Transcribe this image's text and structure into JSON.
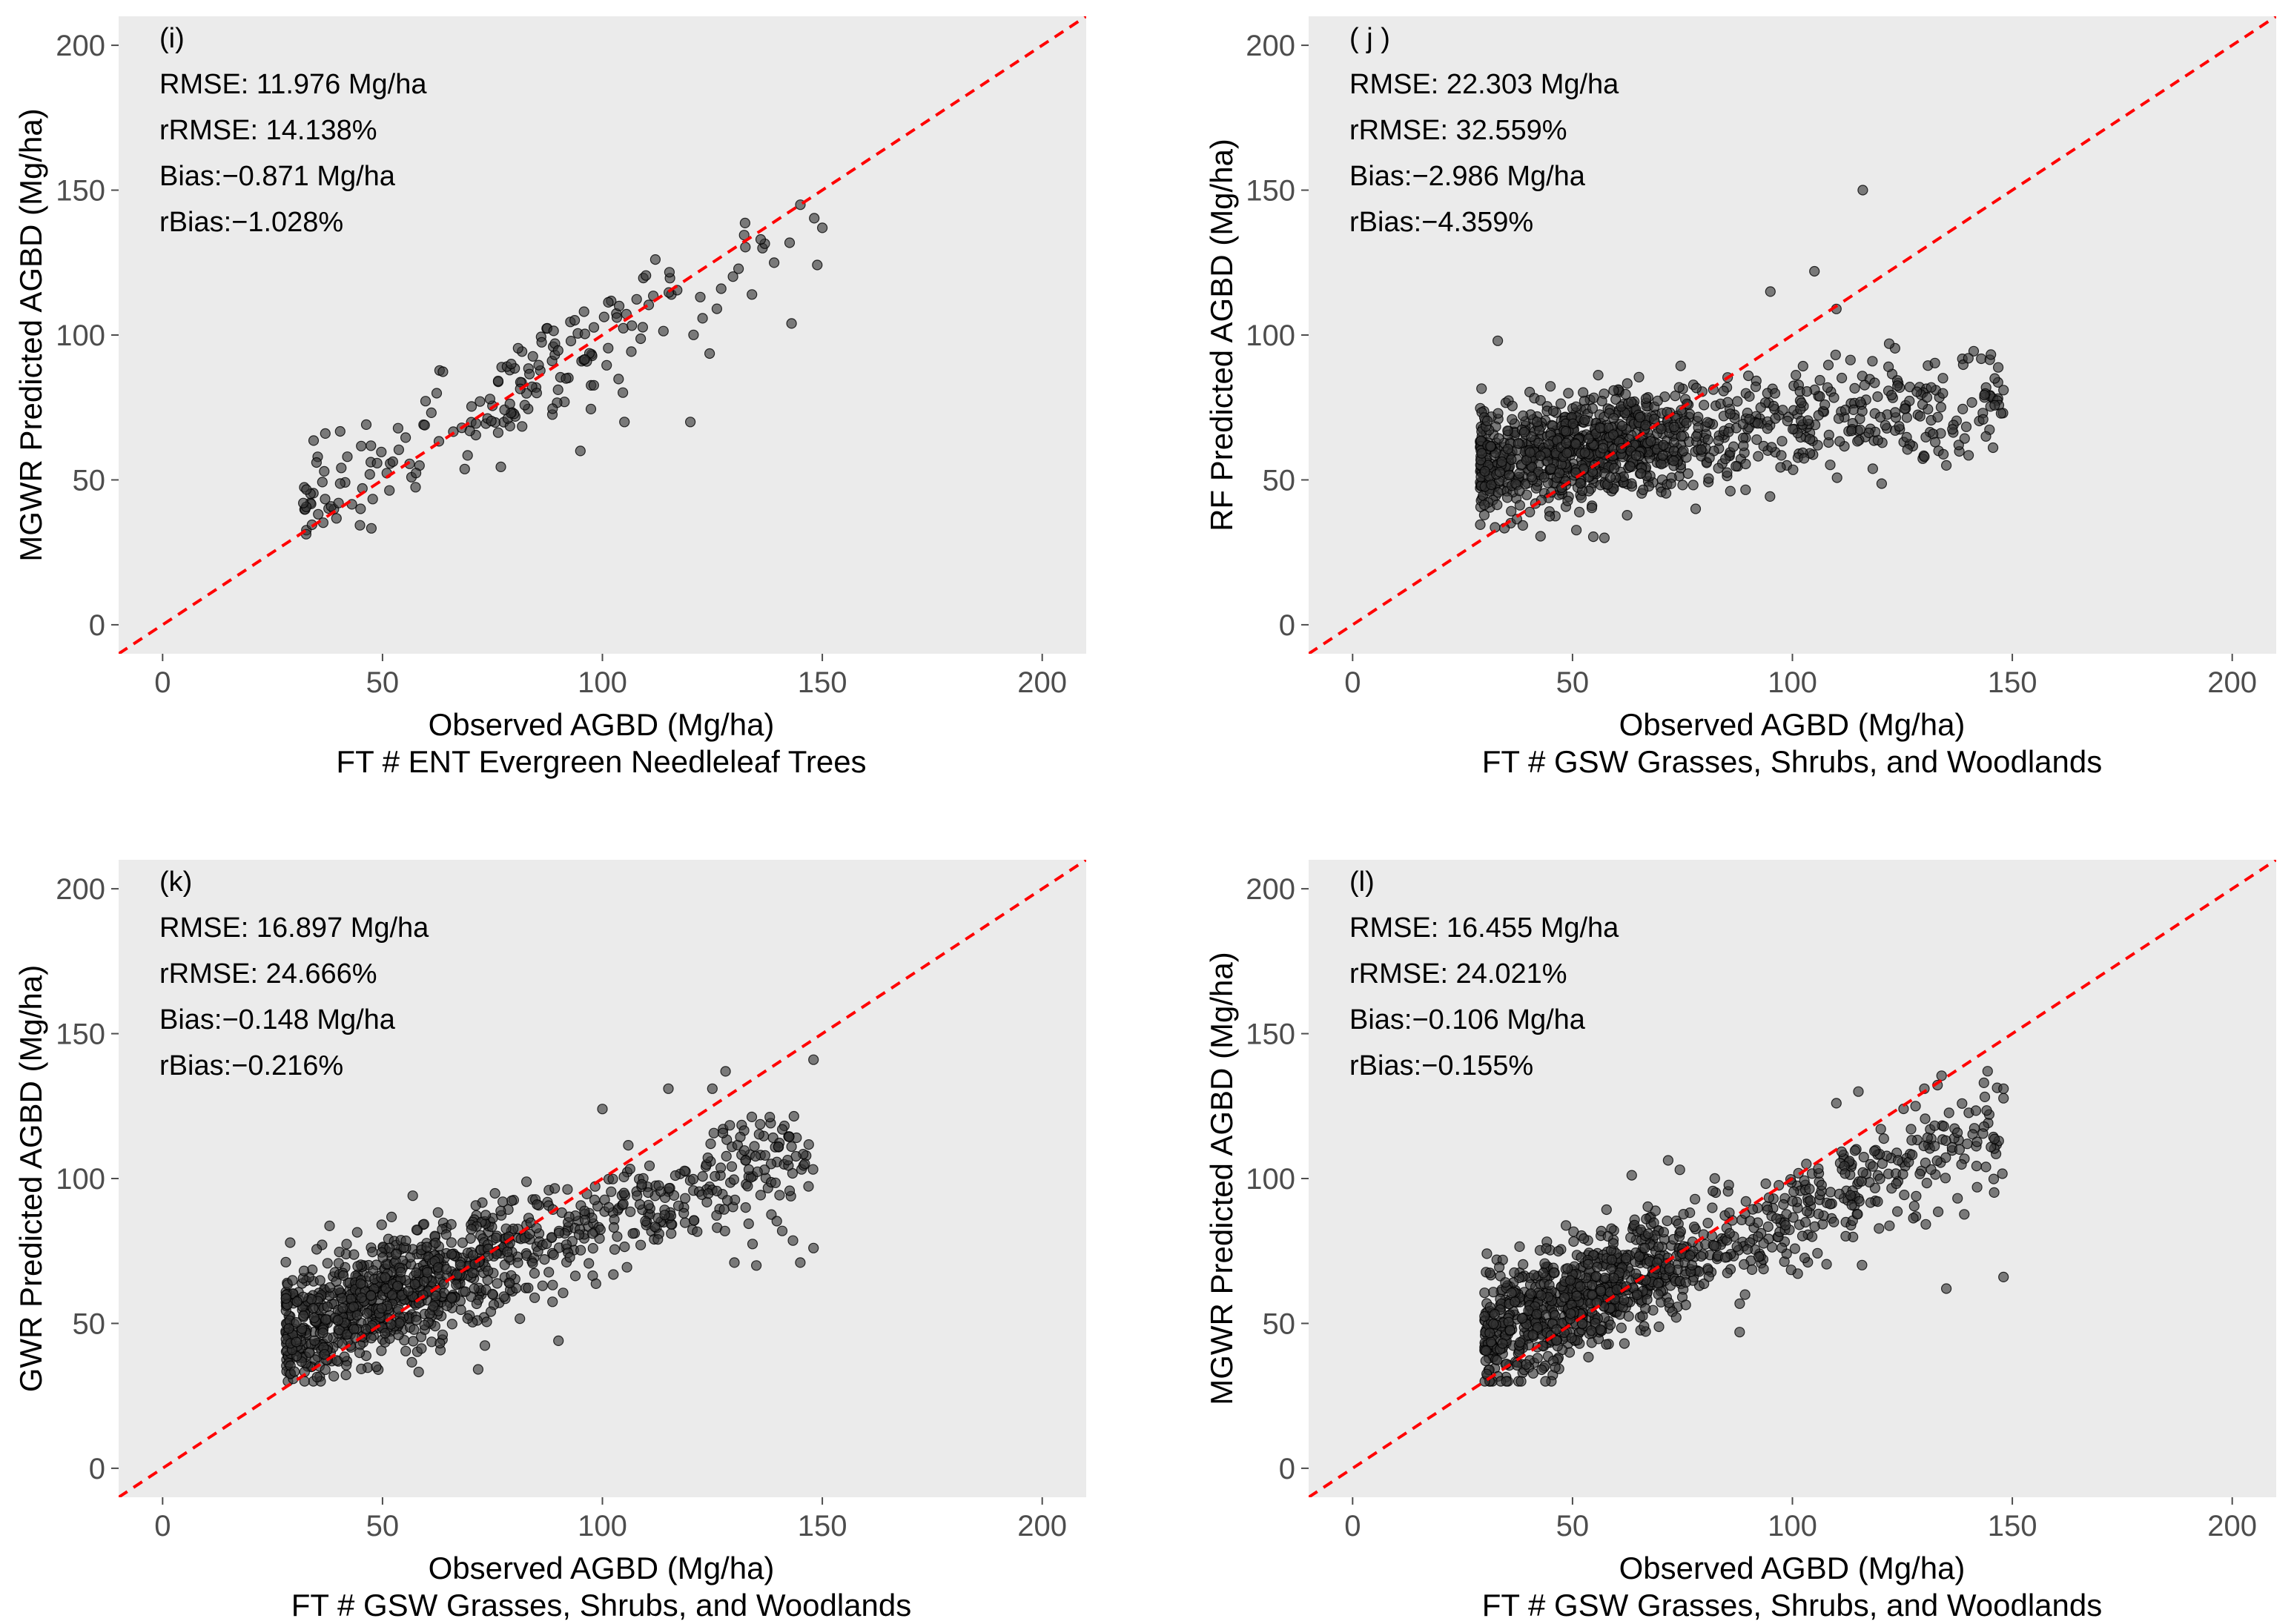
{
  "chart_data": [
    {
      "type": "scatter",
      "panel": "(i)",
      "xlabel": "Observed AGBD (Mg/ha)",
      "subtitle": "FT # ENT Evergreen Needleleaf Trees",
      "ylabel": "MGWR Predicted AGBD (Mg/ha)",
      "xlim": [
        -10,
        210
      ],
      "ylim": [
        -10,
        210
      ],
      "xticks": [
        0,
        50,
        100,
        150,
        200
      ],
      "yticks": [
        0,
        50,
        100,
        150,
        200
      ],
      "grid": false,
      "reference_line": {
        "type": "1:1",
        "style": "dashed",
        "color": "#ff0000"
      },
      "stats": [
        "RMSE: 11.976 Mg/ha",
        "rRMSE: 14.138%",
        "Bias:−0.871 Mg/ha",
        "rBias:−1.028%"
      ],
      "point_cloud": {
        "n": 190,
        "x_range": [
          32,
          150
        ],
        "slope": 0.87,
        "intercept": 11,
        "noise": 9.5,
        "x_mode": 90,
        "seed": 11
      },
      "points": [
        [
          32,
          42
        ],
        [
          35,
          56
        ],
        [
          37,
          66
        ],
        [
          40,
          42
        ],
        [
          42,
          58
        ],
        [
          45,
          40
        ],
        [
          150,
          137
        ],
        [
          143,
          104
        ],
        [
          136,
          133
        ],
        [
          120,
          70
        ],
        [
          105,
          70
        ],
        [
          95,
          60
        ],
        [
          134,
          114
        ],
        [
          127,
          116
        ]
      ]
    },
    {
      "type": "scatter",
      "panel": "( j )",
      "xlabel": "Observed AGBD (Mg/ha)",
      "subtitle": "FT # GSW Grasses, Shrubs, and Woodlands",
      "ylabel": "RF Predicted AGBD (Mg/ha)",
      "xlim": [
        -10,
        210
      ],
      "ylim": [
        -10,
        210
      ],
      "xticks": [
        0,
        50,
        100,
        150,
        200
      ],
      "yticks": [
        0,
        50,
        100,
        150,
        200
      ],
      "grid": false,
      "reference_line": {
        "type": "1:1",
        "style": "dashed",
        "color": "#ff0000"
      },
      "stats": [
        "RMSE: 22.303 Mg/ha",
        "rRMSE: 32.559%",
        "Bias:−2.986 Mg/ha",
        "rBias:−4.359%"
      ],
      "point_cloud": {
        "n": 1100,
        "x_range": [
          29,
          148
        ],
        "slope": 0.2,
        "intercept": 50,
        "noise": 9,
        "x_mode": 55,
        "seed": 22
      },
      "points": [
        [
          116,
          150
        ],
        [
          105,
          122
        ],
        [
          110,
          109
        ],
        [
          95,
          115
        ],
        [
          33,
          98
        ],
        [
          148,
          81
        ],
        [
          146,
          85
        ],
        [
          140,
          92
        ],
        [
          144,
          65
        ],
        [
          130,
          58
        ],
        [
          135,
          55
        ],
        [
          78,
          40
        ],
        [
          122,
          97
        ]
      ]
    },
    {
      "type": "scatter",
      "panel": "(k)",
      "xlabel": "Observed AGBD (Mg/ha)",
      "subtitle": "FT # GSW Grasses, Shrubs, and Woodlands",
      "ylabel": "GWR Predicted AGBD (Mg/ha)",
      "xlim": [
        -10,
        210
      ],
      "ylim": [
        -10,
        210
      ],
      "xticks": [
        0,
        50,
        100,
        150,
        200
      ],
      "yticks": [
        0,
        50,
        100,
        150,
        200
      ],
      "grid": false,
      "reference_line": {
        "type": "1:1",
        "style": "dashed",
        "color": "#ff0000"
      },
      "stats": [
        "RMSE: 16.897 Mg/ha",
        "rRMSE: 24.666%",
        "Bias:−0.148 Mg/ha",
        "rBias:−0.216%"
      ],
      "point_cloud": {
        "n": 1100,
        "x_range": [
          28,
          148
        ],
        "slope": 0.53,
        "intercept": 32,
        "noise": 10,
        "x_mode": 55,
        "seed": 33
      },
      "points": [
        [
          148,
          141
        ],
        [
          143,
          111
        ],
        [
          148,
          76
        ],
        [
          145,
          71
        ],
        [
          128,
          137
        ],
        [
          125,
          131
        ],
        [
          115,
          131
        ],
        [
          37,
          34
        ],
        [
          90,
          44
        ],
        [
          130,
          71
        ],
        [
          135,
          70
        ],
        [
          140,
          111
        ],
        [
          100,
          124
        ]
      ]
    },
    {
      "type": "scatter",
      "panel": "(l)",
      "xlabel": "Observed AGBD (Mg/ha)",
      "subtitle": "FT # GSW Grasses, Shrubs, and Woodlands",
      "ylabel": "MGWR Predicted AGBD (Mg/ha)",
      "xlim": [
        -10,
        210
      ],
      "ylim": [
        -10,
        210
      ],
      "xticks": [
        0,
        50,
        100,
        150,
        200
      ],
      "yticks": [
        0,
        50,
        100,
        150,
        200
      ],
      "grid": false,
      "reference_line": {
        "type": "1:1",
        "style": "dashed",
        "color": "#ff0000"
      },
      "stats": [
        "RMSE: 16.455 Mg/ha",
        "rRMSE: 24.021%",
        "Bias:−0.106 Mg/ha",
        "rBias:−0.155%"
      ],
      "point_cloud": {
        "n": 1100,
        "x_range": [
          30,
          148
        ],
        "slope": 0.6,
        "intercept": 28,
        "noise": 10,
        "x_mode": 55,
        "seed": 44
      },
      "points": [
        [
          148,
          131
        ],
        [
          148,
          66
        ],
        [
          144,
          104
        ],
        [
          130,
          131
        ],
        [
          128,
          125
        ],
        [
          115,
          130
        ],
        [
          110,
          126
        ],
        [
          35,
          36
        ],
        [
          88,
          47
        ],
        [
          138,
          110
        ],
        [
          142,
          97
        ],
        [
          135,
          62
        ]
      ]
    }
  ],
  "colors": {
    "panel_background": "#ebebeb",
    "point_fill": "#333333",
    "point_stroke": "#000000",
    "reference_line": "#ff0000",
    "tick_text": "#4d4d4d",
    "text": "#000000"
  }
}
